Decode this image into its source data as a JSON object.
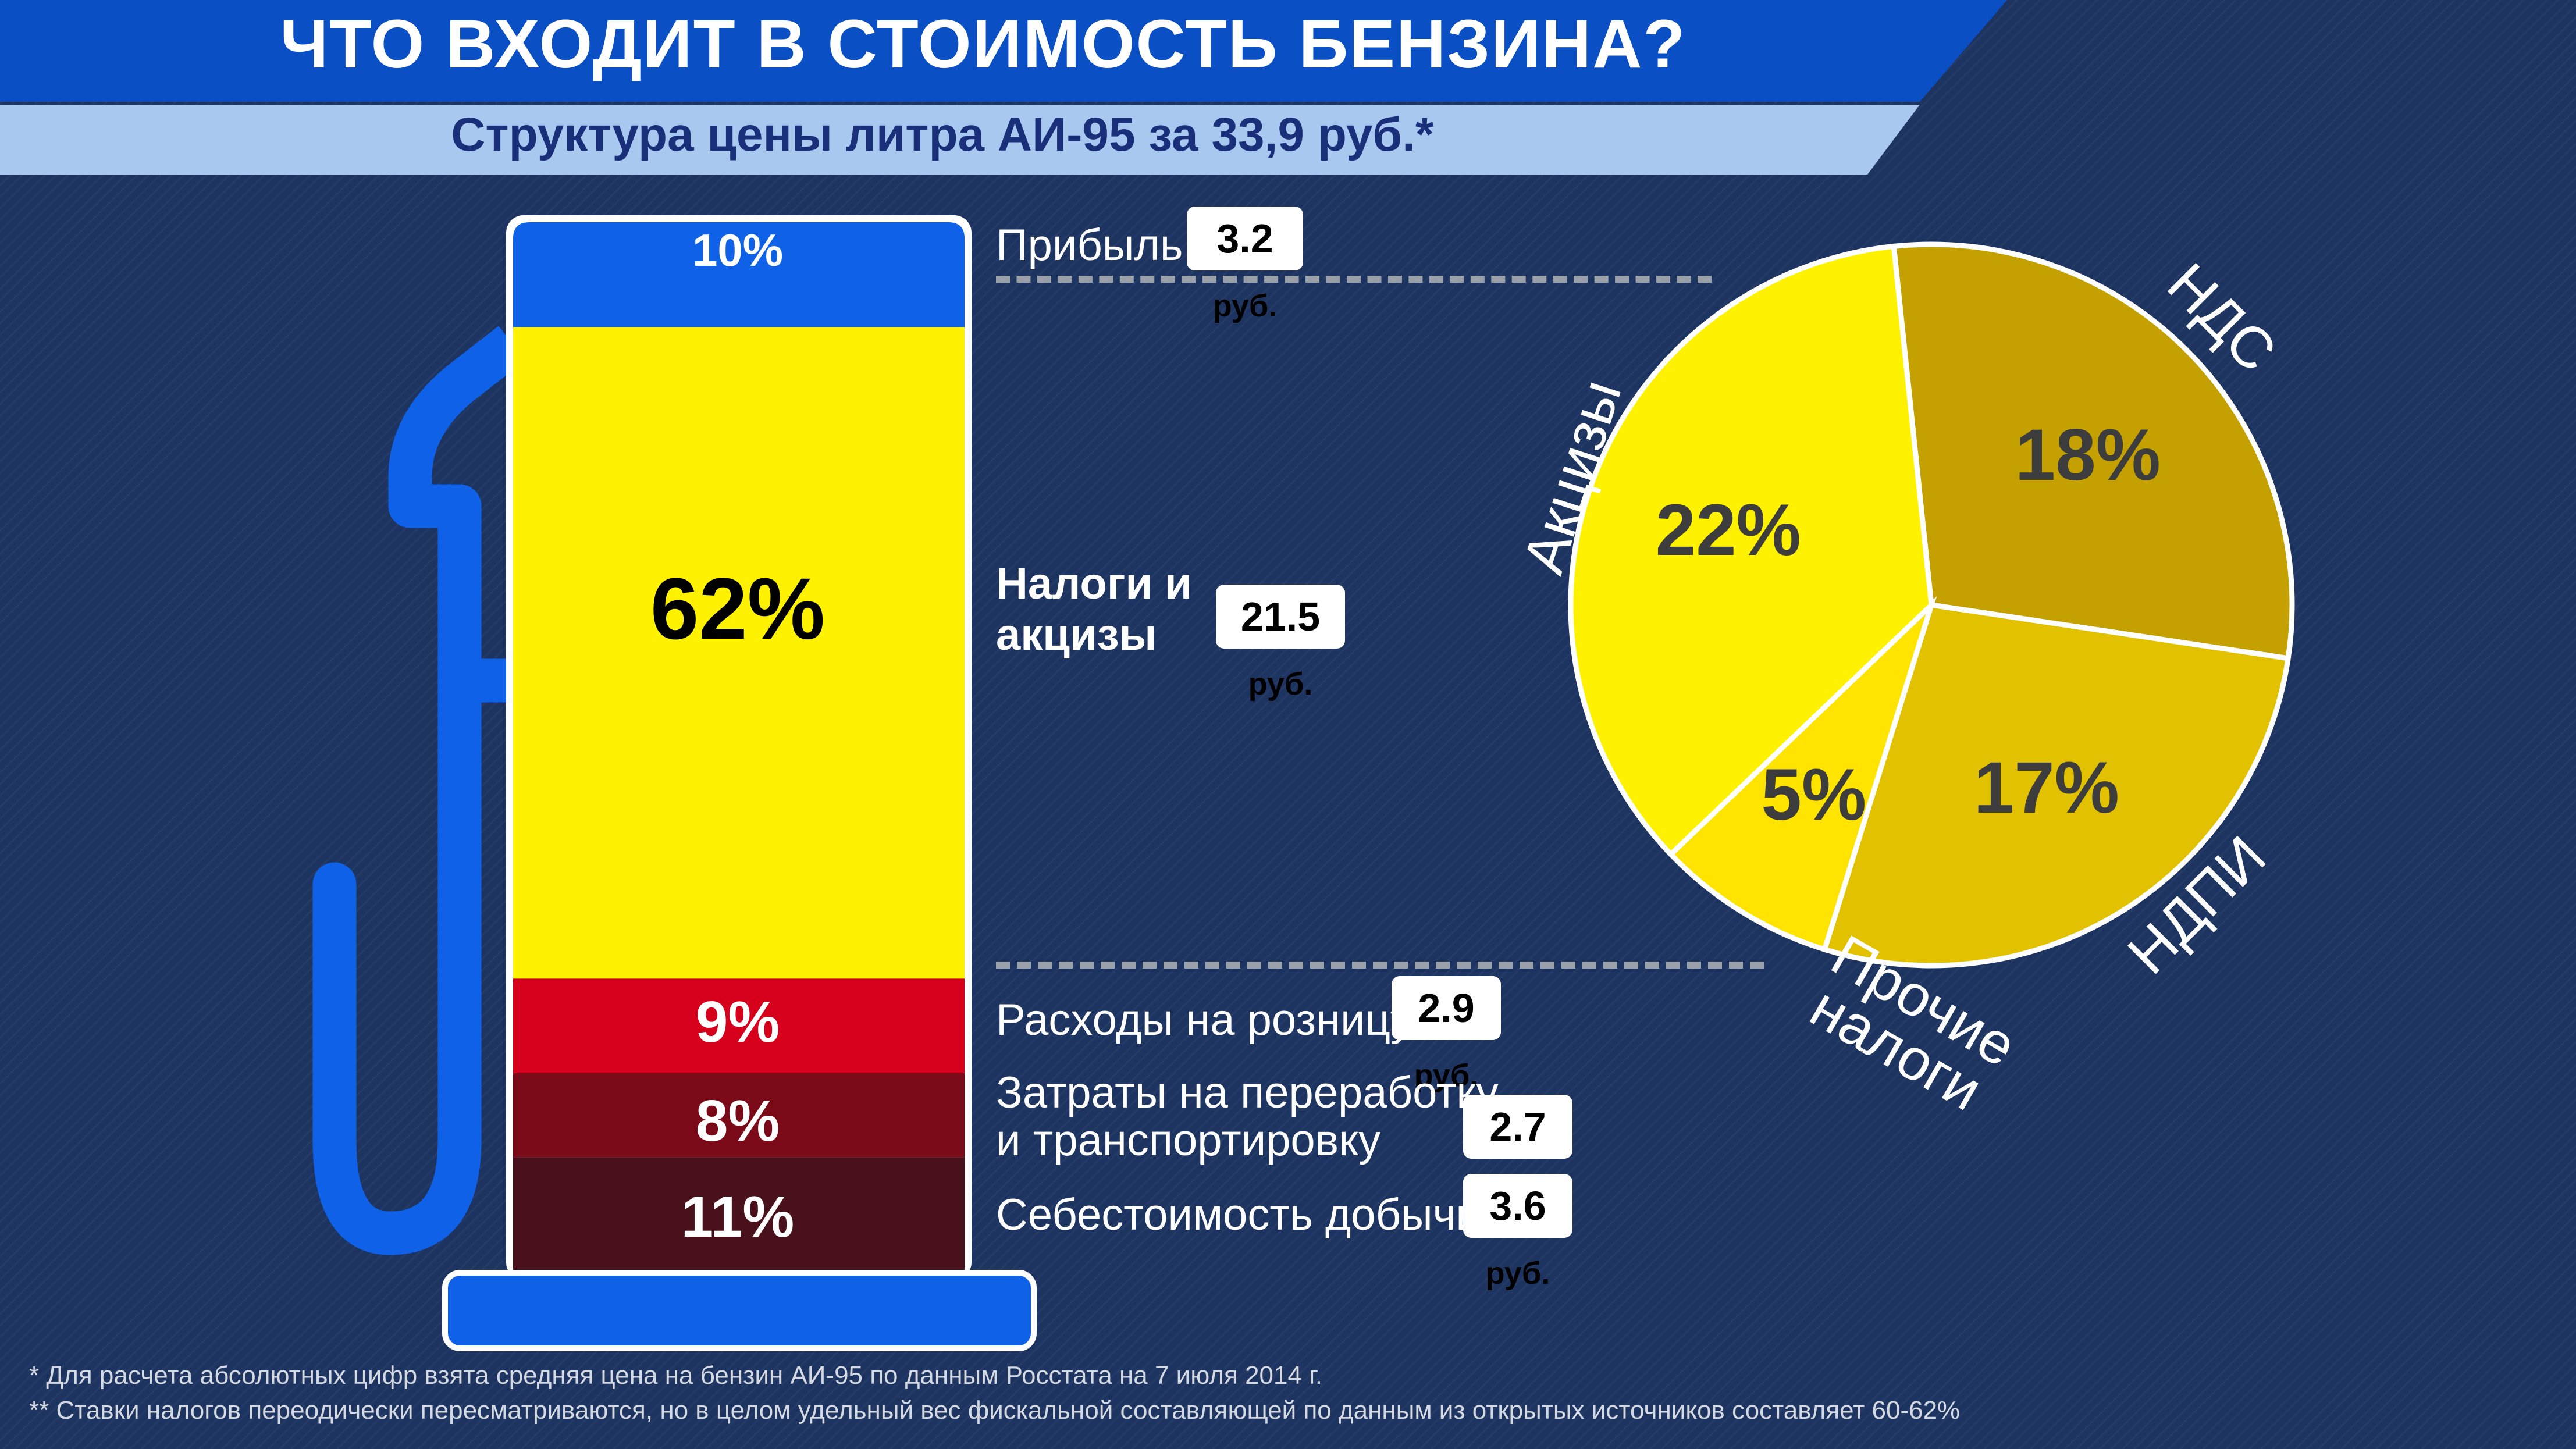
{
  "header": {
    "title": "ЧТО ВХОДИТ В СТОИМОСТЬ БЕНЗИНА?",
    "subtitle": "Структура цены литра АИ-95 за 33,9 руб.*"
  },
  "colors": {
    "banner_blue": "#0b4fc4",
    "pump_blue": "#0f62e8",
    "profit": "#0f62e8",
    "taxes": "#fff200",
    "retail": "#d6001c",
    "processing": "#7a0a18",
    "extraction": "#48111b",
    "pie_vat": "#c4a100",
    "pie_ndpi": "#e2c200",
    "pie_other": "#ffe400",
    "pie_excise": "#fff200"
  },
  "chart_data": [
    {
      "type": "bar",
      "title": "",
      "categories": [
        "Прибыль",
        "Налоги и акцизы",
        "Расходы на розницу",
        "Затраты на переработку и транспортировку",
        "Себестоимость добычи"
      ],
      "values": [
        10,
        62,
        9,
        8,
        11
      ],
      "value_labels": [
        "10%",
        "62%",
        "9%",
        "8%",
        "11%"
      ],
      "amounts": [
        "3.2",
        "21.5",
        "2.9",
        "2.7",
        "3.6"
      ],
      "unit": "руб.",
      "label_lines": {
        "profit": [
          "Прибыль"
        ],
        "taxes": [
          "Налоги и",
          "акцизы"
        ],
        "retail": [
          "Расходы на розницу"
        ],
        "processing": [
          "Затраты на переработку",
          "и транспортировку"
        ],
        "extraction": [
          "Себестоимость добычи"
        ]
      }
    },
    {
      "type": "pie",
      "title": "",
      "slices": [
        {
          "name": "НДС",
          "value": 18,
          "label": "18%"
        },
        {
          "name": "НДПИ",
          "value": 17,
          "label": "17%"
        },
        {
          "name": "Прочие налоги",
          "name_lines": [
            "Прочие",
            "налоги"
          ],
          "value": 5,
          "label": "5%"
        },
        {
          "name": "Акцизы",
          "value": 22,
          "label": "22%"
        }
      ]
    }
  ],
  "footnotes": {
    "note1": "* Для расчета абсолютных цифр взята средняя цена на бензин АИ-95 по данным Росстата на 7 июля 2014 г.",
    "note2": "** Ставки налогов переодически пересматриваются, но в целом удельный вес фискальной составляющей по данным из открытых источников составляет 60-62%"
  }
}
